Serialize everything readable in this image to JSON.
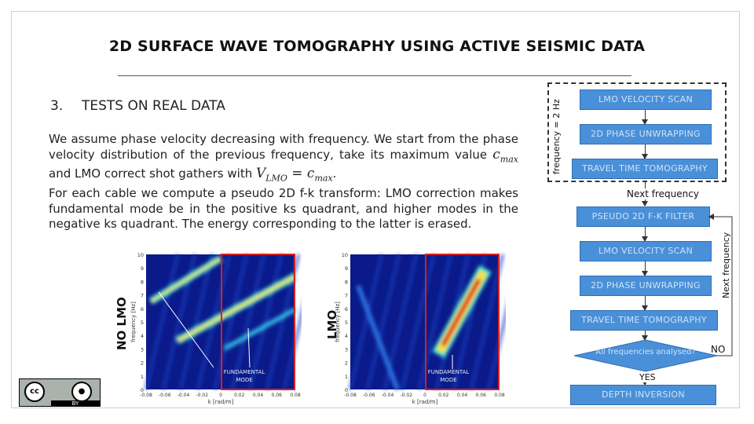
{
  "slide": {
    "title": "2D SURFACE WAVE TOMOGRAPHY USING ACTIVE SEISMIC DATA",
    "section_number": "3.",
    "section_title": "TESTS ON REAL DATA",
    "para1_a": "We assume phase velocity decreasing with frequency. We start from the phase velocity distribution of the previous frequency, take its maximum value ",
    "c_max": "c",
    "c_max_sub": "max",
    "para1_b": " and LMO correct shot gathers with ",
    "v_lmo": "V",
    "v_lmo_sub": "LMO",
    "equals": " = ",
    "para1_c": ".",
    "para2": "For each cable we compute a pseudo 2D f-k transform: LMO correction makes fundamental mode be in the positive ks quadrant, and higher modes in the negative ks quadrant. The energy corresponding to the latter is erased."
  },
  "flowchart": {
    "top_loop_label": "frequency = 2 Hz",
    "box1": "LMO VELOCITY SCAN",
    "box2": "2D PHASE UNWRAPPING",
    "box3": "TRAVEL TIME TOMOGRAPHY",
    "next_frequency_1": "Next frequency",
    "box4": "PSEUDO 2D F-K FILTER",
    "box5": "LMO VELOCITY SCAN",
    "box6": "2D PHASE UNWRAPPING",
    "box7": "TRAVEL TIME TOMOGRAPHY",
    "decision": "All frequencies analysed?",
    "no_label": "NO",
    "yes_label": "YES",
    "next_frequency_2": "Next frequency",
    "box8": "DEPTH INVERSION"
  },
  "plots": {
    "left_label": "NO LMO",
    "right_label": "LMO",
    "ylabel": "frequency [Hz]",
    "xlabel": "k [rad/m]",
    "annotation": "FUNDAMENTAL MODE",
    "yticks": [
      "10",
      "9",
      "8",
      "7",
      "6",
      "5",
      "4",
      "3",
      "2",
      "1",
      "0"
    ],
    "xticks": [
      "-0.08",
      "-0.06",
      "-0.04",
      "-0.02",
      "0",
      "0.02",
      "0.04",
      "0.06",
      "0.08"
    ]
  },
  "license": {
    "cc": "cc",
    "by_icon": "person-icon",
    "by": "BY"
  }
}
